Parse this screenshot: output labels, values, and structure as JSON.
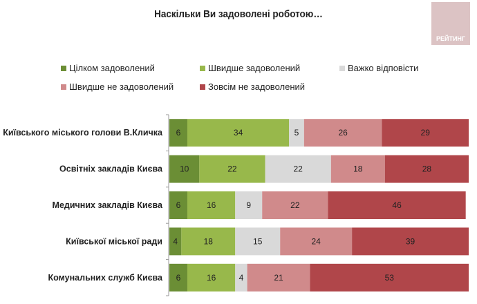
{
  "header": {
    "title": "Наскільки Ви задоволені роботою…",
    "logo_text": "РЕЙТИНГ"
  },
  "chart_data": {
    "type": "bar",
    "orientation": "horizontal",
    "stacked": true,
    "title": "Наскільки Ви задоволені роботою…",
    "categories": [
      "Київського міського голови В.Кличка",
      "Освітніх закладів Києва",
      "Медичних закладів Києва",
      "Київської міської ради",
      "Комунальних служб Києва"
    ],
    "series": [
      {
        "name": "Цілком задоволений",
        "color": "#6b8e35",
        "values": [
          6,
          10,
          6,
          4,
          6
        ]
      },
      {
        "name": "Швидше задоволений",
        "color": "#98b84b",
        "values": [
          34,
          22,
          16,
          18,
          16
        ]
      },
      {
        "name": "Важко відповісти",
        "color": "#d9d9d9",
        "values": [
          5,
          22,
          9,
          15,
          4
        ]
      },
      {
        "name": "Швидше не задоволений",
        "color": "#d08a8b",
        "values": [
          26,
          18,
          22,
          24,
          21
        ]
      },
      {
        "name": "Зовсім не задоволений",
        "color": "#b0464a",
        "values": [
          29,
          28,
          46,
          39,
          53
        ]
      }
    ],
    "xlim": [
      0,
      100
    ],
    "legend": "top",
    "grid": false
  }
}
